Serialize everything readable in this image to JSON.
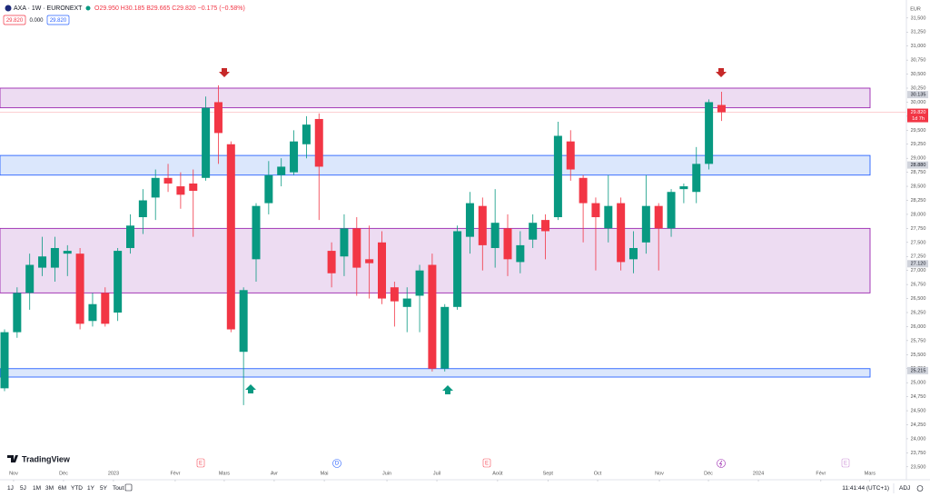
{
  "header": {
    "symbol": "AXA · 1W · EURONEXT",
    "ohlc": "O29.950 H30.185 B29.665 C29.820 −0.175 (−0.58%)",
    "bid": "29.820",
    "spread": "0.000",
    "ask": "29.820"
  },
  "chart_data": {
    "type": "candlestick",
    "currency": "EUR",
    "categories": [
      null,
      null,
      null,
      null,
      null,
      null,
      null,
      null,
      null,
      null,
      null,
      null,
      null,
      null,
      null,
      null,
      null,
      null,
      null,
      null,
      null,
      null,
      null,
      null,
      null,
      null,
      null,
      null,
      null,
      null,
      null,
      null,
      null,
      null,
      null,
      null,
      null,
      null,
      null,
      null,
      null,
      null,
      null,
      null,
      null,
      null,
      null,
      null,
      null,
      null,
      null,
      null,
      null,
      null,
      null,
      null,
      null,
      null
    ],
    "open": [
      24.9,
      25.9,
      26.6,
      27.05,
      27.05,
      27.3,
      27.3,
      26.1,
      26.6,
      26.25,
      27.4,
      27.95,
      28.3,
      28.65,
      28.5,
      28.55,
      28.65,
      30.0,
      29.25,
      25.55,
      27.2,
      28.2,
      28.7,
      28.75,
      29.25,
      29.7,
      27.35,
      27.25,
      27.75,
      27.2,
      27.5,
      26.7,
      26.35,
      26.55,
      27.1,
      25.25,
      26.35,
      27.6,
      28.15,
      27.4,
      27.75,
      27.15,
      27.55,
      27.9,
      27.95,
      29.3,
      28.65,
      28.2,
      27.75,
      28.2,
      27.2,
      27.5,
      28.15,
      27.75,
      28.45,
      28.4,
      28.9,
      29.95
    ],
    "high": [
      25.95,
      26.7,
      27.3,
      27.6,
      27.6,
      27.45,
      27.4,
      26.6,
      26.7,
      27.4,
      28.0,
      28.45,
      28.8,
      28.9,
      28.75,
      28.8,
      30.1,
      30.3,
      29.3,
      26.7,
      28.2,
      28.95,
      29.0,
      29.5,
      29.75,
      29.8,
      27.5,
      28.0,
      27.95,
      27.8,
      27.7,
      26.8,
      26.7,
      27.1,
      27.3,
      26.4,
      27.8,
      28.4,
      28.3,
      28.45,
      28.0,
      27.7,
      28.0,
      28.0,
      29.65,
      29.5,
      28.7,
      28.3,
      28.7,
      28.3,
      27.7,
      28.7,
      28.2,
      28.45,
      28.55,
      29.2,
      30.05,
      30.185
    ],
    "low": [
      24.85,
      25.8,
      26.3,
      26.9,
      26.8,
      26.9,
      25.95,
      26.0,
      26.0,
      26.1,
      27.3,
      27.65,
      27.9,
      28.4,
      28.1,
      27.6,
      28.6,
      28.9,
      25.9,
      24.6,
      26.8,
      28.0,
      28.5,
      28.7,
      29.0,
      27.9,
      26.7,
      26.9,
      26.55,
      26.5,
      26.4,
      26.0,
      25.9,
      25.9,
      25.2,
      25.2,
      26.3,
      27.3,
      27.0,
      27.05,
      26.9,
      26.95,
      27.4,
      27.2,
      27.9,
      28.6,
      27.5,
      27.0,
      27.5,
      27.0,
      26.95,
      27.3,
      27.0,
      27.6,
      28.2,
      28.2,
      28.8,
      29.665
    ],
    "close": [
      25.9,
      26.6,
      27.1,
      27.25,
      27.4,
      27.35,
      26.05,
      26.4,
      26.05,
      27.35,
      27.8,
      28.25,
      28.65,
      28.55,
      28.35,
      28.42,
      29.9,
      29.45,
      25.95,
      26.65,
      28.15,
      28.7,
      28.85,
      29.3,
      29.6,
      28.85,
      26.95,
      27.75,
      27.05,
      27.13,
      26.5,
      26.45,
      26.5,
      27.0,
      25.25,
      26.35,
      27.7,
      28.2,
      27.45,
      27.85,
      27.2,
      27.45,
      27.85,
      27.7,
      29.4,
      28.8,
      28.2,
      27.95,
      28.15,
      27.15,
      27.4,
      28.15,
      27.75,
      28.4,
      28.5,
      28.9,
      30.0,
      29.82
    ],
    "up_color": "#089981",
    "down_color": "#f23645",
    "ylim": [
      23.27,
      31.74
    ],
    "yticks": [
      {
        "value": 23.5,
        "label": "23,500"
      },
      {
        "value": 23.75,
        "label": "23,750"
      },
      {
        "value": 24,
        "label": "24,000"
      },
      {
        "value": 24.25,
        "label": "24,250"
      },
      {
        "value": 24.5,
        "label": "24,500"
      },
      {
        "value": 24.75,
        "label": "24,750"
      },
      {
        "value": 25,
        "label": "25,000"
      },
      {
        "value": 25.25,
        "label": "25,250"
      },
      {
        "value": 25.5,
        "label": "25,500"
      },
      {
        "value": 25.75,
        "label": "25,750"
      },
      {
        "value": 26,
        "label": "26,000"
      },
      {
        "value": 26.25,
        "label": "26,250"
      },
      {
        "value": 26.5,
        "label": "26,500"
      },
      {
        "value": 26.75,
        "label": "26,750"
      },
      {
        "value": 27,
        "label": "27,000"
      },
      {
        "value": 27.25,
        "label": "27,250"
      },
      {
        "value": 27.5,
        "label": "27,500"
      },
      {
        "value": 27.75,
        "label": "27,750"
      },
      {
        "value": 28,
        "label": "28,000"
      },
      {
        "value": 28.25,
        "label": "28,250"
      },
      {
        "value": 28.5,
        "label": "28,500"
      },
      {
        "value": 28.75,
        "label": "28,750"
      },
      {
        "value": 29,
        "label": "29,000"
      },
      {
        "value": 29.25,
        "label": "29,250"
      },
      {
        "value": 29.5,
        "label": "29,500"
      },
      {
        "value": 29.75,
        "label": "29,750"
      },
      {
        "value": 30,
        "label": "30,000"
      },
      {
        "value": 30.25,
        "label": "30,250"
      },
      {
        "value": 30.5,
        "label": "30,500"
      },
      {
        "value": 30.75,
        "label": "30,750"
      },
      {
        "value": 31,
        "label": "31,000"
      },
      {
        "value": 31.25,
        "label": "31,250"
      },
      {
        "value": 31.5,
        "label": "31,500"
      }
    ],
    "xticks": [
      {
        "value": 0.72,
        "label": "Nov"
      },
      {
        "value": 4.69,
        "label": "Déc"
      },
      {
        "value": 8.66,
        "label": "2023"
      },
      {
        "value": 13.57,
        "label": "Févr"
      },
      {
        "value": 17.47,
        "label": "Mars"
      },
      {
        "value": 21.44,
        "label": "Avr"
      },
      {
        "value": 25.42,
        "label": "Mai"
      },
      {
        "value": 30.4,
        "label": "Juin"
      },
      {
        "value": 34.37,
        "label": "Juil"
      },
      {
        "value": 39.2,
        "label": "Août"
      },
      {
        "value": 43.2,
        "label": "Sept"
      },
      {
        "value": 47.15,
        "label": "Oct"
      },
      {
        "value": 52.06,
        "label": "Nov"
      },
      {
        "value": 55.96,
        "label": "Déc"
      },
      {
        "value": 59.93,
        "label": "2024"
      },
      {
        "value": 64.9,
        "label": "Févr"
      },
      {
        "value": 68.8,
        "label": "Mars"
      }
    ],
    "zones": [
      {
        "top": 30.25,
        "bottom": 29.9,
        "fill": "#ead6f0",
        "border": "#9c27b0",
        "label": {
          "value": 30.135,
          "label": "30.135"
        }
      },
      {
        "top": 29.05,
        "bottom": 28.7,
        "fill": "#d5e3fb",
        "border": "#2962ff",
        "label": {
          "value": 28.88,
          "label": "28.880"
        }
      },
      {
        "top": 27.75,
        "bottom": 26.6,
        "fill": "#ead6f0",
        "border": "#9c27b0",
        "label": {
          "value": 27.12,
          "label": "27.120"
        }
      },
      {
        "top": 25.25,
        "bottom": 25.1,
        "fill": "#d5e3fb",
        "border": "#2962ff",
        "label": {
          "value": 25.215,
          "label": "25.215"
        }
      }
    ],
    "last_price": {
      "value": 29.82,
      "label": "29.820"
    },
    "countdown": "1d 7h",
    "events": [
      "E",
      "D",
      "E",
      "E"
    ]
  },
  "footer": {
    "logo": "TradingView",
    "ranges": [
      "1J",
      "5J",
      "1M",
      "3M",
      "6M",
      "YTD",
      "1Y",
      "5Y",
      "Tout"
    ],
    "clock": "11:41:44 (UTC+1)",
    "adj": "ADJ"
  }
}
